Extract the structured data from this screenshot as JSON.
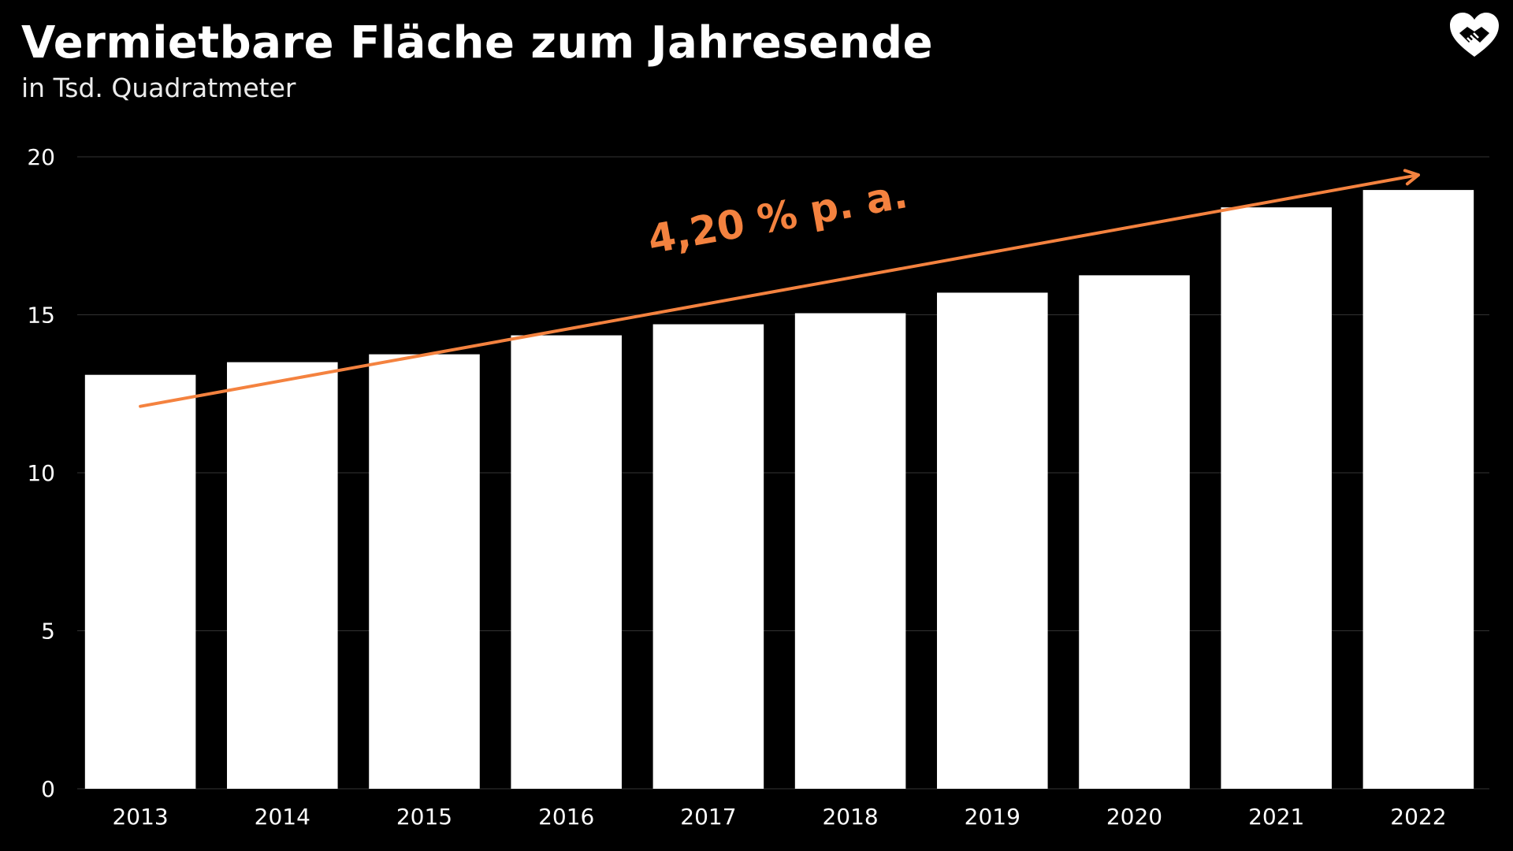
{
  "title": "Vermietbare Fläche zum Jahresende",
  "subtitle": "in Tsd. Quadratmeter",
  "logo_icon": "heart-handshake-icon",
  "colors": {
    "background": "#000000",
    "bar": "#ffffff",
    "accent": "#f4823f",
    "grid": "#333333",
    "text": "#ffffff"
  },
  "chart_data": {
    "type": "bar",
    "title": "Vermietbare Fläche zum Jahresende",
    "subtitle": "in Tsd. Quadratmeter",
    "categories": [
      "2013",
      "2014",
      "2015",
      "2016",
      "2017",
      "2018",
      "2019",
      "2020",
      "2021",
      "2022"
    ],
    "values": [
      13.1,
      13.5,
      13.75,
      14.35,
      14.7,
      15.05,
      15.7,
      16.25,
      18.4,
      18.95
    ],
    "ylim": [
      0,
      20
    ],
    "yticks": [
      0,
      5,
      10,
      15,
      20
    ],
    "grid": true,
    "annotation": {
      "text": "4,20 % p. a.",
      "from": [
        "2013",
        13.1
      ],
      "to": [
        "2022",
        19.4
      ]
    }
  }
}
